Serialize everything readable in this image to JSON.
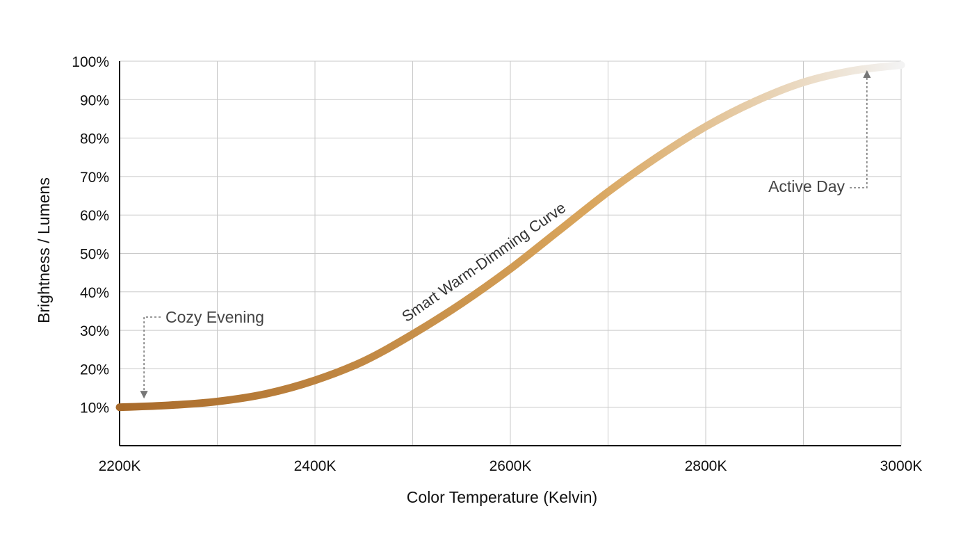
{
  "chart_data": {
    "type": "line",
    "title": "",
    "xlabel": "Color Temperature (Kelvin)",
    "ylabel": "Brightness / Lumens",
    "xlim": [
      2200,
      3000
    ],
    "ylim": [
      0,
      100
    ],
    "x_ticks": [
      {
        "value": 2200,
        "label": "2200K"
      },
      {
        "value": 2400,
        "label": "2400K"
      },
      {
        "value": 2600,
        "label": "2600K"
      },
      {
        "value": 2800,
        "label": "2800K"
      },
      {
        "value": 3000,
        "label": "3000K"
      }
    ],
    "x_grid": [
      2200,
      2300,
      2400,
      2500,
      2600,
      2700,
      2800,
      2900,
      3000
    ],
    "y_ticks": [
      {
        "value": 10,
        "label": "10%"
      },
      {
        "value": 20,
        "label": "20%"
      },
      {
        "value": 30,
        "label": "30%"
      },
      {
        "value": 40,
        "label": "40%"
      },
      {
        "value": 50,
        "label": "50%"
      },
      {
        "value": 60,
        "label": "60%"
      },
      {
        "value": 70,
        "label": "70%"
      },
      {
        "value": 80,
        "label": "80%"
      },
      {
        "value": 90,
        "label": "90%"
      },
      {
        "value": 100,
        "label": "100%"
      }
    ],
    "grid": true,
    "series": [
      {
        "name": "Smart Warm-Dimming Curve",
        "x": [
          2200,
          2250,
          2300,
          2350,
          2400,
          2450,
          2500,
          2550,
          2600,
          2650,
          2700,
          2750,
          2800,
          2850,
          2900,
          2950,
          3000
        ],
        "y": [
          10,
          10.5,
          11.5,
          13.5,
          17,
          22,
          29,
          37,
          46,
          56,
          66,
          75,
          83,
          89.5,
          94.5,
          97.5,
          99
        ],
        "color_start": "#a86a2a",
        "color_mid": "#d9a55c",
        "color_end": "#f3f3f3"
      }
    ],
    "annotations": [
      {
        "text": "Cozy Evening",
        "x": 2225,
        "y": 10
      },
      {
        "text": "Active Day",
        "x": 2965,
        "y": 99
      }
    ]
  }
}
